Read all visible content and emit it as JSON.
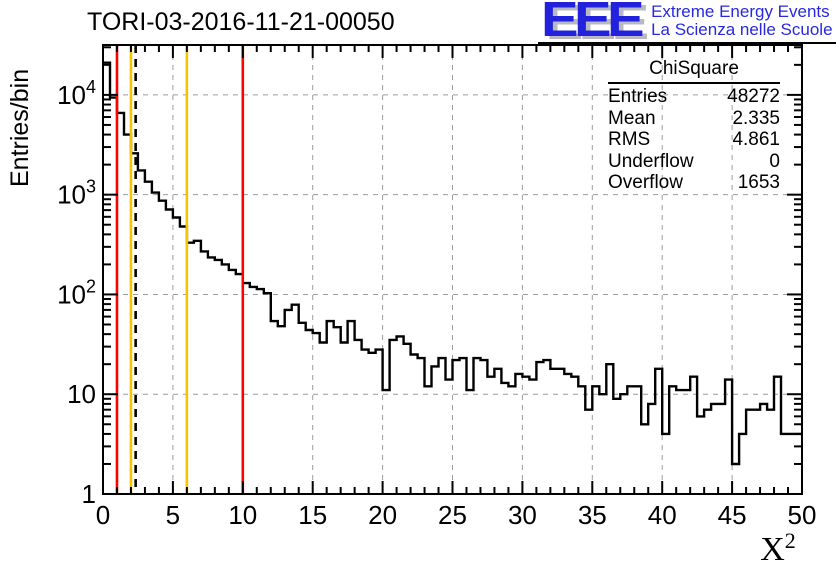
{
  "header": {
    "title": "TORI-03-2016-11-21-00050",
    "logo": {
      "letters": "EEE",
      "line1": "Extreme Energy Events",
      "line2": "La Scienza nelle Scuole",
      "color": "#2222dd"
    }
  },
  "stats": {
    "title": "ChiSquare",
    "rows": [
      {
        "label": "Entries",
        "value": "48272"
      },
      {
        "label": "Mean",
        "value": "2.335"
      },
      {
        "label": "RMS",
        "value": "4.861"
      },
      {
        "label": "Underflow",
        "value": "0"
      },
      {
        "label": "Overflow",
        "value": "1653"
      }
    ]
  },
  "chart_data": {
    "type": "bar",
    "subtype": "step-histogram",
    "title": "TORI-03-2016-11-21-00050",
    "xlabel": "X",
    "xlabel_exp": "2",
    "ylabel": "Entries/bin",
    "yscale": "log",
    "xlim": [
      0,
      50
    ],
    "ylim": [
      1,
      31623
    ],
    "bin_width": 0.5,
    "x_start": 0,
    "grid": true,
    "x_major_ticks": [
      0,
      5,
      10,
      15,
      20,
      25,
      30,
      35,
      40,
      45,
      50
    ],
    "x_minor_step": 1,
    "y_ticks": [
      {
        "value": 1,
        "base": "1",
        "exp": ""
      },
      {
        "value": 10,
        "base": "10",
        "exp": ""
      },
      {
        "value": 100,
        "base": "10",
        "exp": "2"
      },
      {
        "value": 1000,
        "base": "10",
        "exp": "3"
      },
      {
        "value": 10000,
        "base": "10",
        "exp": "4"
      }
    ],
    "values": [
      21000,
      9400,
      6600,
      4000,
      2600,
      1750,
      1350,
      1050,
      870,
      710,
      590,
      480,
      330,
      345,
      270,
      235,
      222,
      200,
      176,
      160,
      130,
      119,
      113,
      103,
      54,
      48,
      70,
      79,
      52,
      44,
      41,
      33,
      54,
      47,
      33,
      54,
      35,
      28,
      26,
      28,
      11,
      35,
      38,
      32,
      25,
      23,
      12,
      19,
      23,
      14,
      22,
      23,
      11,
      23,
      22,
      15,
      18,
      13,
      12,
      16,
      15,
      14,
      21,
      22,
      18,
      18,
      16,
      15,
      12,
      7,
      12,
      10,
      20,
      9,
      10,
      12,
      12,
      5,
      8,
      18,
      4,
      12,
      11,
      11,
      15,
      6,
      7,
      8,
      8,
      14,
      2,
      4,
      7,
      7,
      8,
      7,
      15,
      4,
      4,
      4
    ],
    "marker_lines": [
      {
        "x": 1,
        "color": "#ff0000",
        "style": "solid"
      },
      {
        "x": 2,
        "color": "#f6c400",
        "style": "solid"
      },
      {
        "x": 2.335,
        "color": "#000000",
        "style": "dashed"
      },
      {
        "x": 6,
        "color": "#f6c400",
        "style": "solid"
      },
      {
        "x": 10,
        "color": "#ff0000",
        "style": "solid"
      }
    ],
    "colors": {
      "histogram": "#000000",
      "grid": "#9c9c9c",
      "frame": "#000000"
    }
  }
}
